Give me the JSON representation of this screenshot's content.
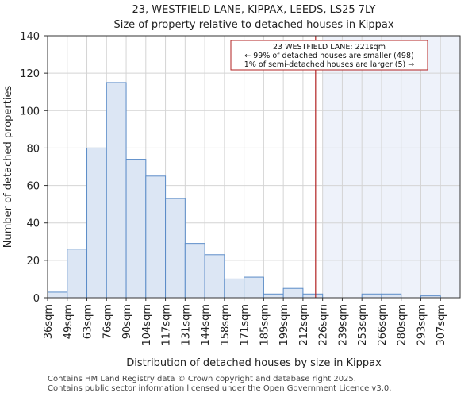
{
  "chart_data": {
    "type": "bar",
    "title": "23, WESTFIELD LANE, KIPPAX, LEEDS, LS25 7LY",
    "subtitle": "Size of property relative to detached houses in Kippax",
    "xlabel": "Distribution of detached houses by size in Kippax",
    "ylabel": "Number of detached properties",
    "ylim": [
      0,
      140
    ],
    "yticks": [
      0,
      20,
      40,
      60,
      80,
      100,
      120,
      140
    ],
    "categories": [
      "36sqm",
      "49sqm",
      "63sqm",
      "76sqm",
      "90sqm",
      "104sqm",
      "117sqm",
      "131sqm",
      "144sqm",
      "158sqm",
      "171sqm",
      "185sqm",
      "199sqm",
      "212sqm",
      "226sqm",
      "239sqm",
      "253sqm",
      "266sqm",
      "280sqm",
      "293sqm",
      "307sqm"
    ],
    "values": [
      3,
      26,
      80,
      115,
      74,
      65,
      53,
      29,
      23,
      10,
      11,
      2,
      5,
      2,
      0,
      0,
      2,
      2,
      0,
      1,
      0
    ],
    "bar_color": "#dce6f4",
    "bar_edge_color": "#5b8cc8",
    "highlight": {
      "start_category_index": 14,
      "fill": "#eef2fa"
    },
    "marker": {
      "x_sqm": 221,
      "color": "#b22222"
    },
    "annotation": {
      "lines": [
        "23 WESTFIELD LANE: 221sqm",
        "← 99% of detached houses are smaller (498)",
        "1% of semi-detached houses are larger (5) →"
      ]
    }
  },
  "footer": {
    "line1": "Contains HM Land Registry data © Crown copyright and database right 2025.",
    "line2": "Contains public sector information licensed under the Open Government Licence v3.0."
  }
}
